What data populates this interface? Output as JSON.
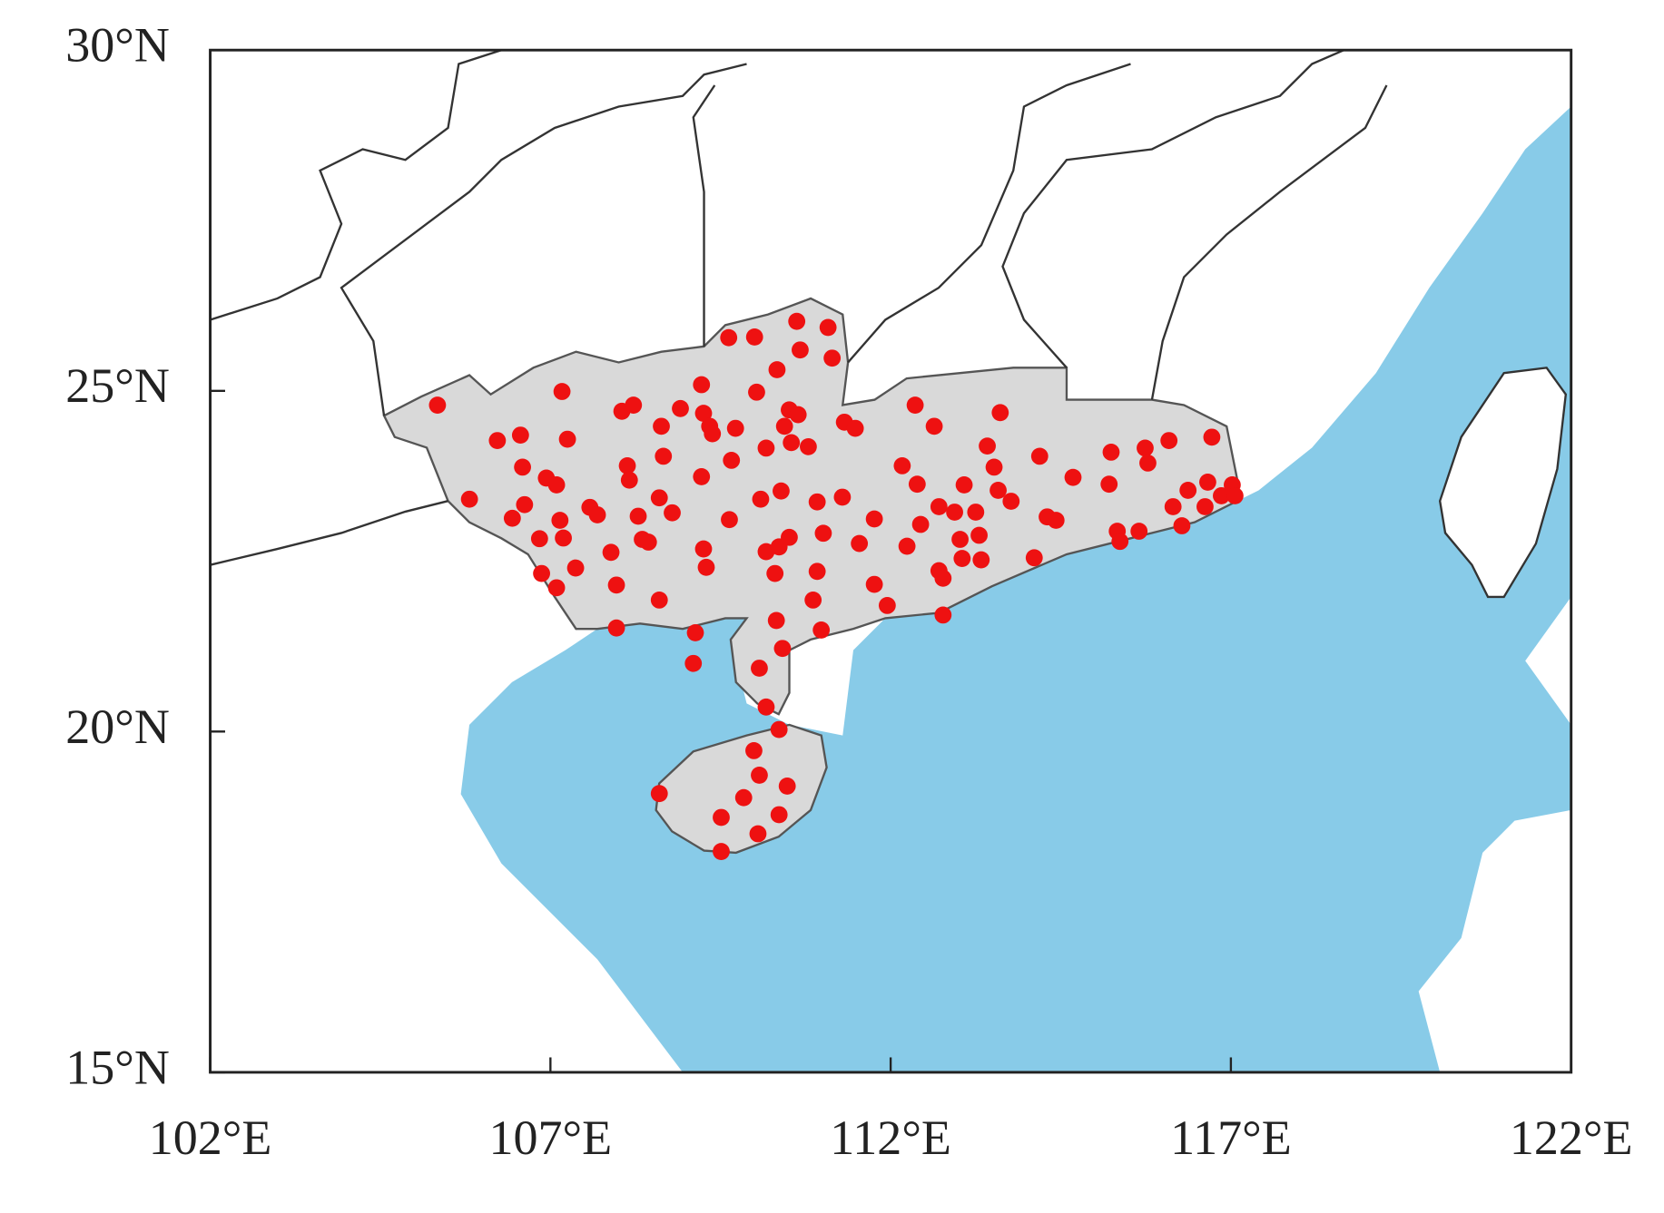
{
  "chart_data": {
    "type": "scatter",
    "color": "#ee1111",
    "xlim": [
      102,
      122
    ],
    "ylim": [
      15,
      30
    ],
    "xticks": [
      {
        "value": 102,
        "label": "102°E"
      },
      {
        "value": 107,
        "label": "107°E"
      },
      {
        "value": 112,
        "label": "112°E"
      },
      {
        "value": 117,
        "label": "117°E"
      },
      {
        "value": 122,
        "label": "122°E"
      }
    ],
    "yticks": [
      {
        "value": 15,
        "label": "15°N"
      },
      {
        "value": 20,
        "label": "20°N"
      },
      {
        "value": 25,
        "label": "25°N"
      },
      {
        "value": 30,
        "label": "30°N"
      }
    ],
    "x": [
      105.34,
      105.81,
      106.22,
      106.56,
      106.59,
      106.44,
      106.62,
      106.84,
      106.87,
      106.94,
      107.09,
      107.17,
      107.25,
      107.14,
      107.19,
      107.09,
      107.37,
      107.58,
      107.69,
      107.89,
      107.97,
      107.97,
      108.05,
      108.22,
      108.13,
      108.16,
      108.29,
      108.35,
      108.44,
      108.63,
      108.66,
      108.6,
      108.79,
      108.6,
      108.91,
      109.13,
      109.1,
      109.22,
      109.25,
      109.34,
      109.38,
      109.22,
      109.25,
      109.29,
      109.62,
      110.0,
      109.72,
      109.66,
      109.63,
      110.03,
      110.33,
      110.09,
      110.17,
      110.17,
      110.36,
      110.39,
      110.51,
      110.44,
      110.54,
      110.64,
      110.51,
      110.3,
      110.32,
      110.41,
      110.07,
      110.17,
      110.36,
      110.62,
      110.67,
      111.08,
      111.14,
      110.79,
      110.92,
      111.01,
      110.92,
      110.86,
      110.98,
      111.29,
      111.32,
      111.48,
      111.54,
      111.76,
      111.76,
      111.95,
      112.17,
      112.24,
      112.36,
      112.39,
      112.44,
      112.64,
      112.71,
      112.77,
      112.77,
      112.71,
      112.94,
      113.02,
      113.05,
      113.08,
      113.25,
      113.3,
      113.33,
      113.42,
      113.52,
      113.58,
      113.61,
      113.77,
      114.11,
      114.19,
      114.3,
      114.43,
      114.68,
      115.21,
      115.24,
      115.33,
      115.37,
      115.65,
      115.74,
      115.78,
      116.09,
      116.15,
      116.28,
      116.37,
      116.62,
      116.72,
      116.66,
      116.86,
      117.02,
      117.06,
      109.99,
      110.07,
      110.48,
      108.6,
      109.51,
      109.84,
      110.36,
      110.05,
      109.51
    ],
    "values": [
      24.79,
      23.41,
      24.27,
      24.35,
      23.88,
      23.13,
      23.33,
      22.83,
      22.32,
      23.72,
      23.62,
      24.99,
      24.29,
      23.1,
      22.84,
      22.11,
      22.4,
      23.29,
      23.18,
      22.63,
      22.15,
      21.52,
      24.7,
      24.79,
      23.9,
      23.69,
      23.16,
      22.82,
      22.78,
      24.48,
      24.04,
      23.43,
      23.21,
      21.93,
      24.74,
      21.45,
      21.0,
      25.09,
      24.67,
      24.48,
      24.37,
      23.74,
      22.68,
      22.41,
      25.78,
      25.79,
      24.45,
      23.98,
      23.11,
      24.98,
      25.31,
      23.41,
      24.16,
      22.64,
      22.71,
      23.53,
      24.72,
      24.48,
      24.24,
      24.65,
      22.85,
      22.32,
      21.63,
      21.22,
      20.93,
      20.36,
      20.03,
      26.02,
      25.6,
      25.93,
      25.48,
      24.18,
      23.37,
      22.91,
      22.35,
      21.93,
      21.49,
      23.44,
      24.54,
      24.45,
      22.76,
      23.12,
      22.16,
      21.85,
      23.9,
      22.72,
      24.79,
      23.63,
      23.04,
      24.48,
      22.36,
      22.25,
      21.71,
      23.3,
      23.22,
      22.82,
      22.54,
      23.62,
      23.22,
      22.88,
      22.52,
      24.19,
      23.88,
      23.54,
      24.68,
      23.38,
      22.55,
      24.04,
      23.15,
      23.1,
      23.73,
      23.63,
      24.1,
      22.94,
      22.79,
      22.94,
      24.16,
      23.94,
      24.27,
      23.3,
      23.02,
      23.54,
      23.3,
      24.32,
      23.66,
      23.46,
      23.62,
      23.46,
      19.72,
      19.36,
      19.2,
      19.09,
      18.74,
      19.03,
      18.78,
      18.5,
      18.24
    ]
  }
}
